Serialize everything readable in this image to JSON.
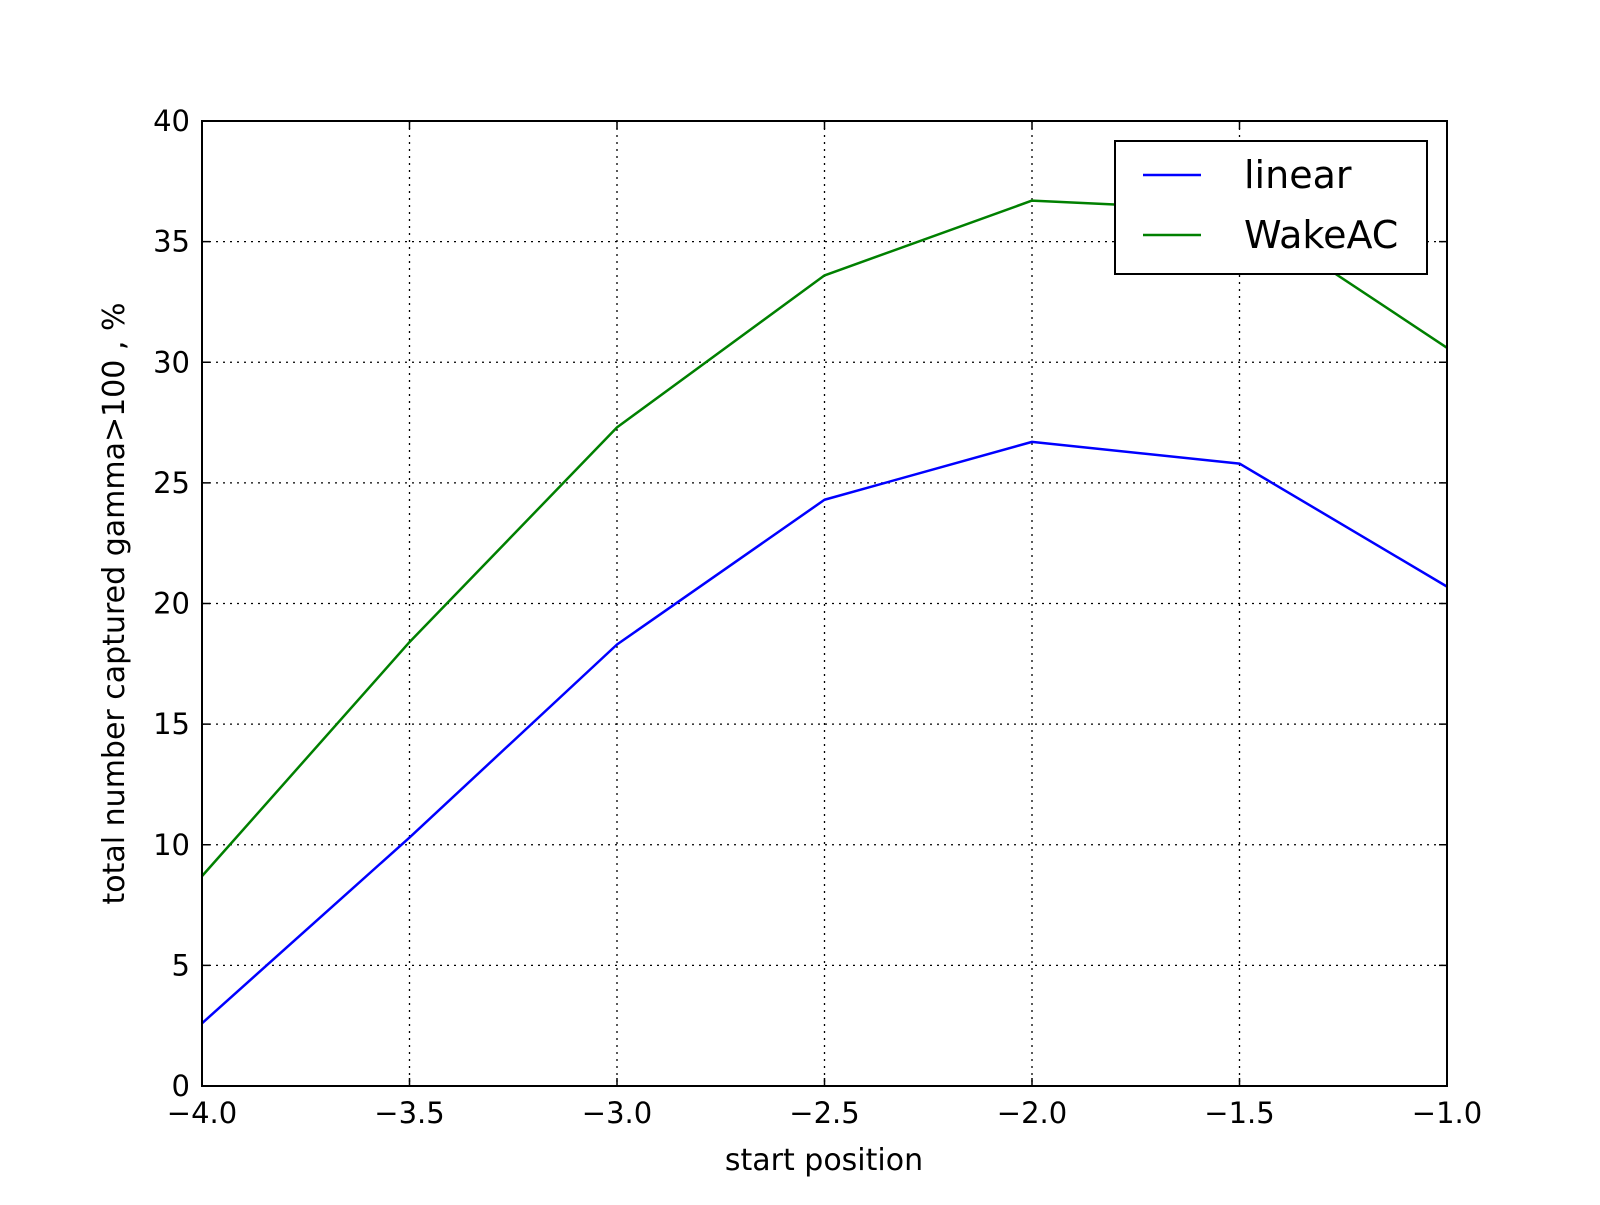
{
  "chart_data": {
    "type": "line",
    "title": "",
    "xlabel": "start position",
    "ylabel": "total number captured gamma>100 , %",
    "xlim": [
      -4.0,
      -1.0
    ],
    "ylim": [
      0,
      40
    ],
    "x_ticks": [
      -4.0,
      -3.5,
      -3.0,
      -2.5,
      -2.0,
      -1.5,
      -1.0
    ],
    "x_tick_labels": [
      "−4.0",
      "−3.5",
      "−3.0",
      "−2.5",
      "−2.0",
      "−1.5",
      "−1.0"
    ],
    "y_ticks": [
      0,
      5,
      10,
      15,
      20,
      25,
      30,
      35,
      40
    ],
    "y_tick_labels": [
      "0",
      "5",
      "10",
      "15",
      "20",
      "25",
      "30",
      "35",
      "40"
    ],
    "grid": true,
    "legend_position": "top-right",
    "x": [
      -4.0,
      -3.5,
      -3.0,
      -2.5,
      -2.0,
      -1.5,
      -1.0
    ],
    "series": [
      {
        "name": "linear",
        "color": "#0000ff",
        "values": [
          2.6,
          10.3,
          18.3,
          24.3,
          26.7,
          25.8,
          20.7
        ]
      },
      {
        "name": "WakeAC",
        "color": "#008000",
        "values": [
          8.7,
          18.4,
          27.3,
          33.6,
          36.7,
          36.3,
          30.6
        ]
      }
    ]
  }
}
